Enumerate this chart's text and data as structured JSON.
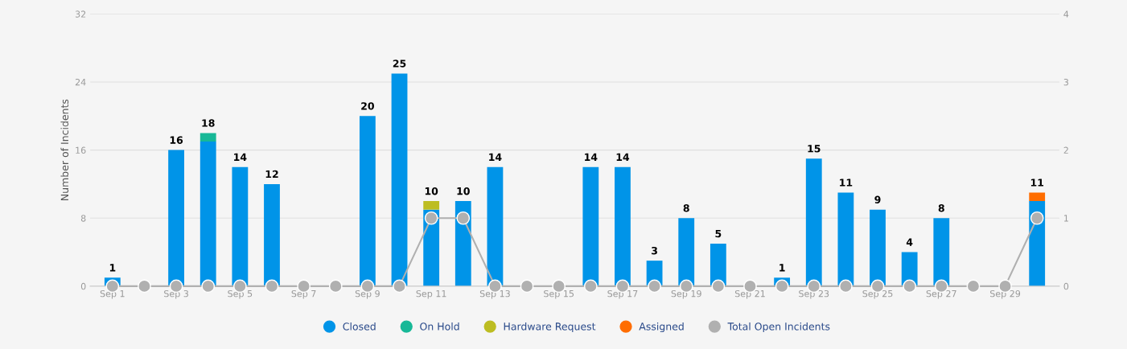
{
  "chart_data": {
    "type": "bar",
    "stacked": true,
    "ylabel": "Number of Incidents",
    "categories": [
      "Sep 1",
      null,
      "Sep 3",
      null,
      "Sep 5",
      null,
      "Sep 7",
      null,
      "Sep 9",
      null,
      "Sep 11",
      null,
      "Sep 13",
      null,
      "Sep 15",
      null,
      "Sep 17",
      null,
      "Sep 19",
      null,
      "Sep 21",
      null,
      "Sep 23",
      null,
      "Sep 25",
      null,
      "Sep 27",
      null,
      "Sep 29",
      null
    ],
    "series": [
      {
        "name": "Closed",
        "color": "#0094e8",
        "values": [
          1,
          null,
          16,
          17,
          14,
          12,
          null,
          null,
          20,
          25,
          9,
          10,
          14,
          null,
          null,
          14,
          14,
          3,
          8,
          5,
          null,
          1,
          15,
          11,
          9,
          4,
          8,
          null,
          null,
          10
        ]
      },
      {
        "name": "On Hold",
        "color": "#17b897",
        "values": [
          null,
          null,
          null,
          1,
          null,
          null,
          null,
          null,
          null,
          null,
          null,
          null,
          null,
          null,
          null,
          null,
          null,
          null,
          null,
          null,
          null,
          null,
          null,
          null,
          null,
          null,
          null,
          null,
          null,
          null
        ]
      },
      {
        "name": "Hardware Request",
        "color": "#bdbd22",
        "values": [
          null,
          null,
          null,
          null,
          null,
          null,
          null,
          null,
          null,
          null,
          1,
          null,
          null,
          null,
          null,
          null,
          null,
          null,
          null,
          null,
          null,
          null,
          null,
          null,
          null,
          null,
          null,
          null,
          null,
          null
        ]
      },
      {
        "name": "Assigned",
        "color": "#ff6d00",
        "values": [
          null,
          null,
          null,
          null,
          null,
          null,
          null,
          null,
          null,
          null,
          null,
          null,
          null,
          null,
          null,
          null,
          null,
          null,
          null,
          null,
          null,
          null,
          null,
          null,
          null,
          null,
          null,
          null,
          null,
          1
        ]
      },
      {
        "name": "Total Open Incidents",
        "type": "line",
        "axis": "y2",
        "color": "#b0b0b0",
        "marker": "circle",
        "values": [
          0,
          0,
          0,
          0,
          0,
          0,
          0,
          0,
          0,
          0,
          1,
          1,
          0,
          0,
          0,
          0,
          0,
          0,
          0,
          0,
          0,
          0,
          0,
          0,
          0,
          0,
          0,
          0,
          0,
          1
        ]
      }
    ],
    "totals": [
      "1",
      null,
      "16",
      "18",
      "14",
      "12",
      null,
      null,
      "20",
      "25",
      "10",
      "10",
      "14",
      null,
      null,
      "14",
      "14",
      "3",
      "8",
      "5",
      null,
      "1",
      "15",
      "11",
      "9",
      "4",
      "8",
      null,
      null,
      "11"
    ],
    "ylim": [
      0,
      32
    ],
    "yticks": [
      0,
      8,
      16,
      24,
      32
    ],
    "y2lim": [
      0,
      4
    ],
    "y2ticks": [
      0,
      1,
      2,
      3,
      4
    ],
    "grid": "y",
    "legend": "bottom"
  }
}
